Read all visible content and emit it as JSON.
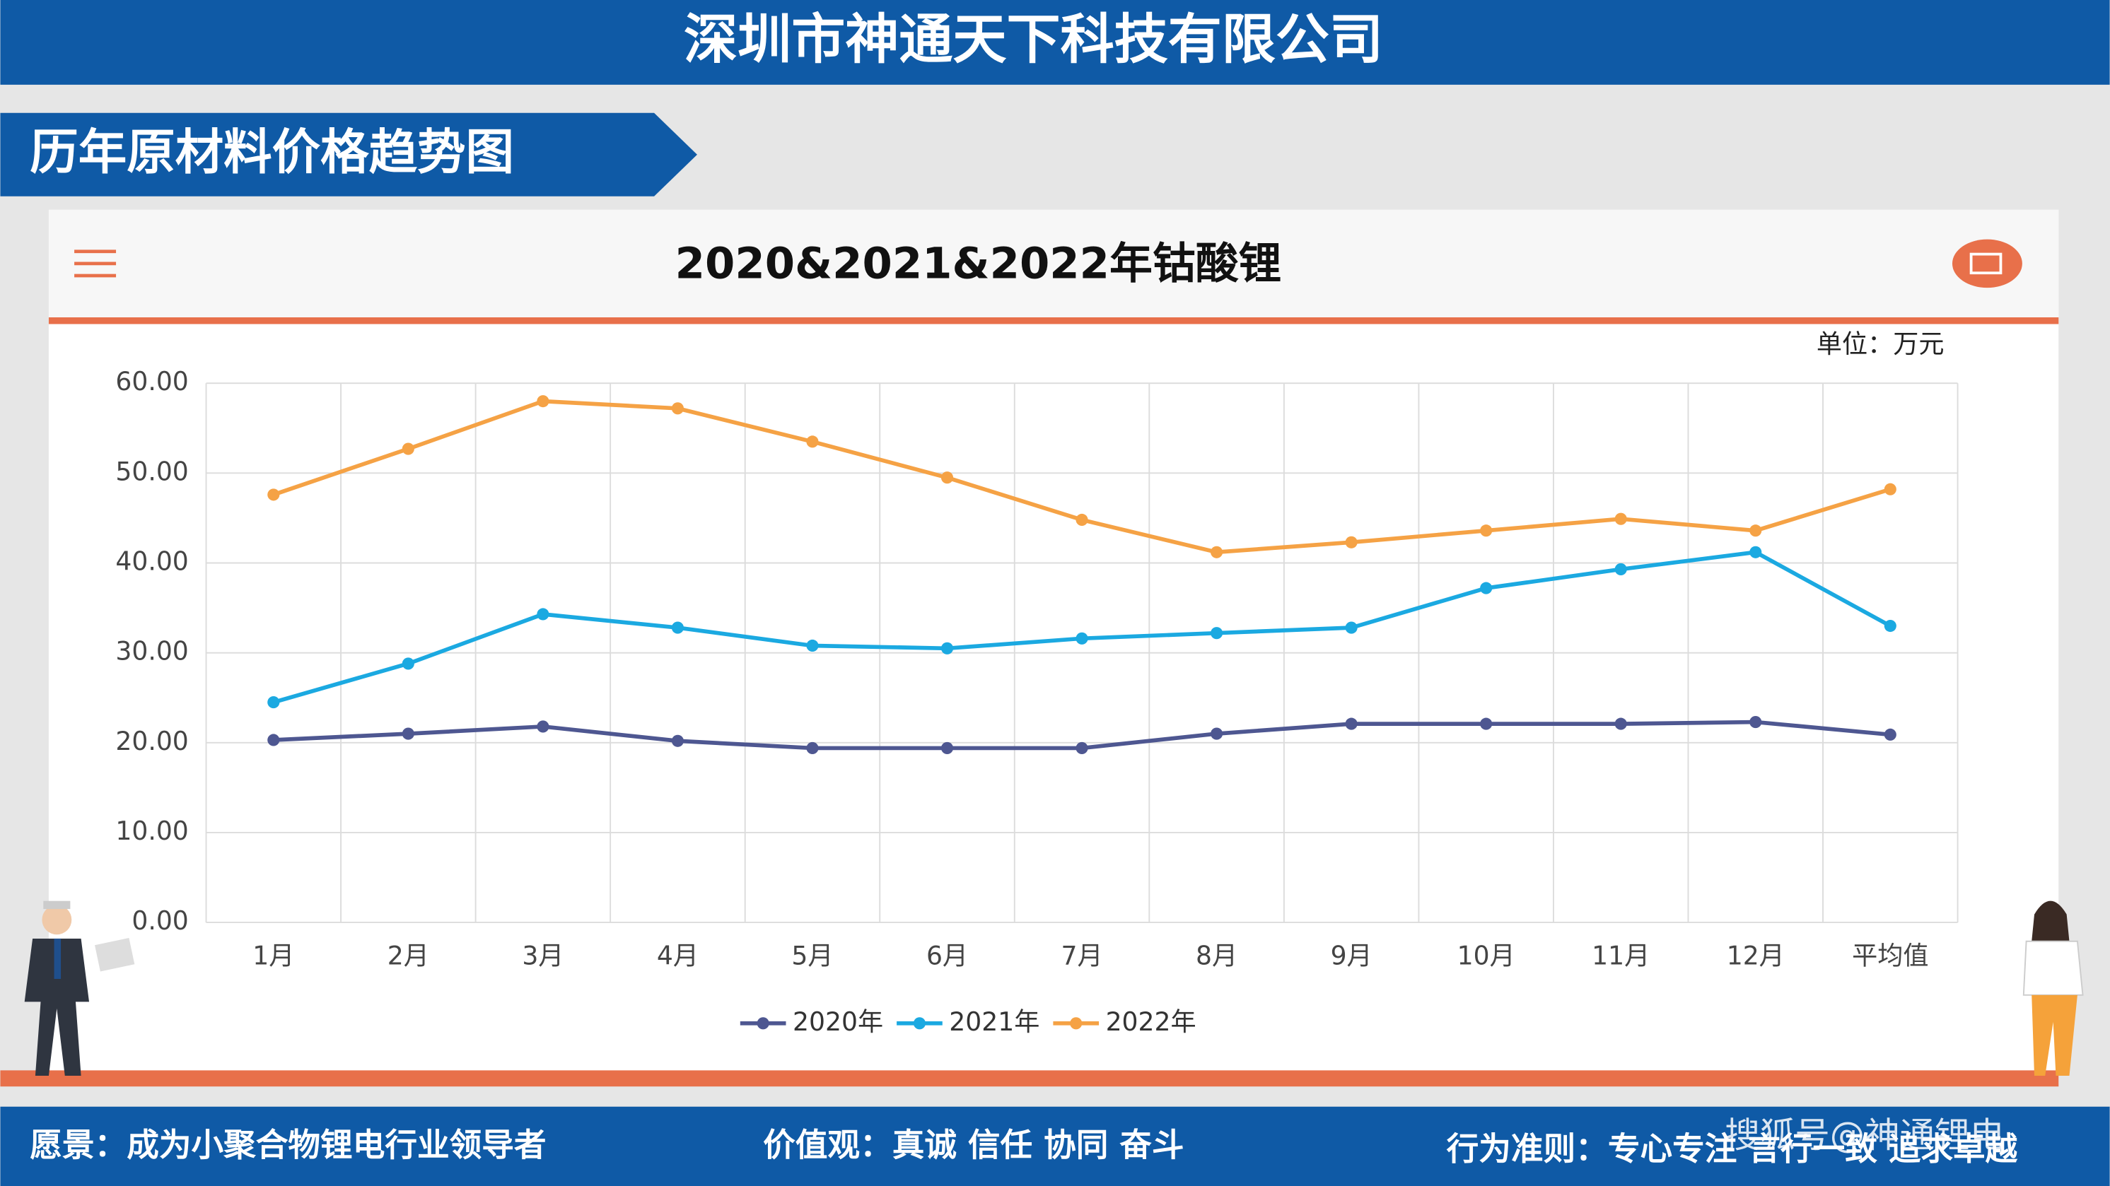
{
  "header": {
    "title": "深圳市神通天下科技有限公司",
    "section": "历年原材料价格趋势图"
  },
  "chart_data": {
    "type": "line",
    "title": "2020&2021&2022年钴酸锂",
    "unit": "单位：万元",
    "categories": [
      "1月",
      "2月",
      "3月",
      "4月",
      "5月",
      "6月",
      "7月",
      "8月",
      "9月",
      "10月",
      "11月",
      "12月",
      "平均值"
    ],
    "series": [
      {
        "name": "2020年",
        "color": "#4e5791",
        "values": [
          20.3,
          21.0,
          21.8,
          20.2,
          19.4,
          19.4,
          19.4,
          21.0,
          22.1,
          22.1,
          22.1,
          22.3,
          20.9
        ]
      },
      {
        "name": "2021年",
        "color": "#1ba9e1",
        "values": [
          24.5,
          28.8,
          34.3,
          32.8,
          30.8,
          30.5,
          31.6,
          32.2,
          32.8,
          37.2,
          39.3,
          41.2,
          33.0
        ]
      },
      {
        "name": "2022年",
        "color": "#f5a245",
        "values": [
          47.6,
          52.7,
          58.0,
          57.2,
          53.5,
          49.5,
          44.8,
          41.2,
          42.3,
          43.6,
          44.9,
          43.6,
          48.2
        ]
      }
    ],
    "ylim": [
      0,
      60
    ],
    "yticks": [
      {
        "value": 0,
        "label": "0.00"
      },
      {
        "value": 10,
        "label": "10.00"
      },
      {
        "value": 20,
        "label": "20.00"
      },
      {
        "value": 30,
        "label": "30.00"
      },
      {
        "value": 40,
        "label": "40.00"
      },
      {
        "value": 50,
        "label": "50.00"
      },
      {
        "value": 60,
        "label": "60.00"
      }
    ],
    "grid": true
  },
  "footer": {
    "vision": "愿景：成为小聚合物锂电行业领导者",
    "values": "价值观：真诚 信任 协同 奋斗",
    "conduct": "行为准则：专心专注 言行一致 追求卓越",
    "watermark": "搜狐号@神通锂电"
  }
}
